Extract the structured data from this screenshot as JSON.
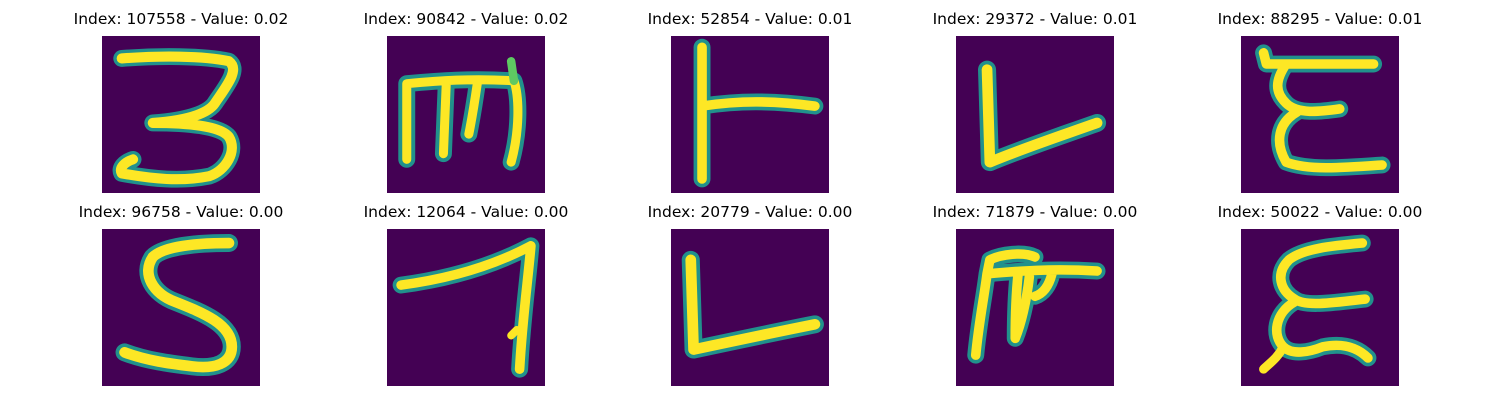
{
  "figure": {
    "background": "#ffffff",
    "colormap": [
      "#440154",
      "#3b528b",
      "#21918c",
      "#5ec962",
      "#fde725"
    ],
    "panels": [
      {
        "title": "Index: 107558 - Value: 0.02",
        "glyph": "3"
      },
      {
        "title": "Index: 90842 - Value: 0.02",
        "glyph": "m"
      },
      {
        "title": "Index: 52854 - Value: 0.01",
        "glyph": "T-rotated"
      },
      {
        "title": "Index: 29372 - Value: 0.01",
        "glyph": "L"
      },
      {
        "title": "Index: 88295 - Value: 0.01",
        "glyph": "E-curly"
      },
      {
        "title": "Index: 96758 - Value: 0.00",
        "glyph": "S"
      },
      {
        "title": "Index: 12064 - Value: 0.00",
        "glyph": "7"
      },
      {
        "title": "Index: 20779 - Value: 0.00",
        "glyph": "L"
      },
      {
        "title": "Index: 71879 - Value: 0.00",
        "glyph": "m-tilted"
      },
      {
        "title": "Index: 50022 - Value: 0.00",
        "glyph": "E-curly"
      }
    ]
  }
}
